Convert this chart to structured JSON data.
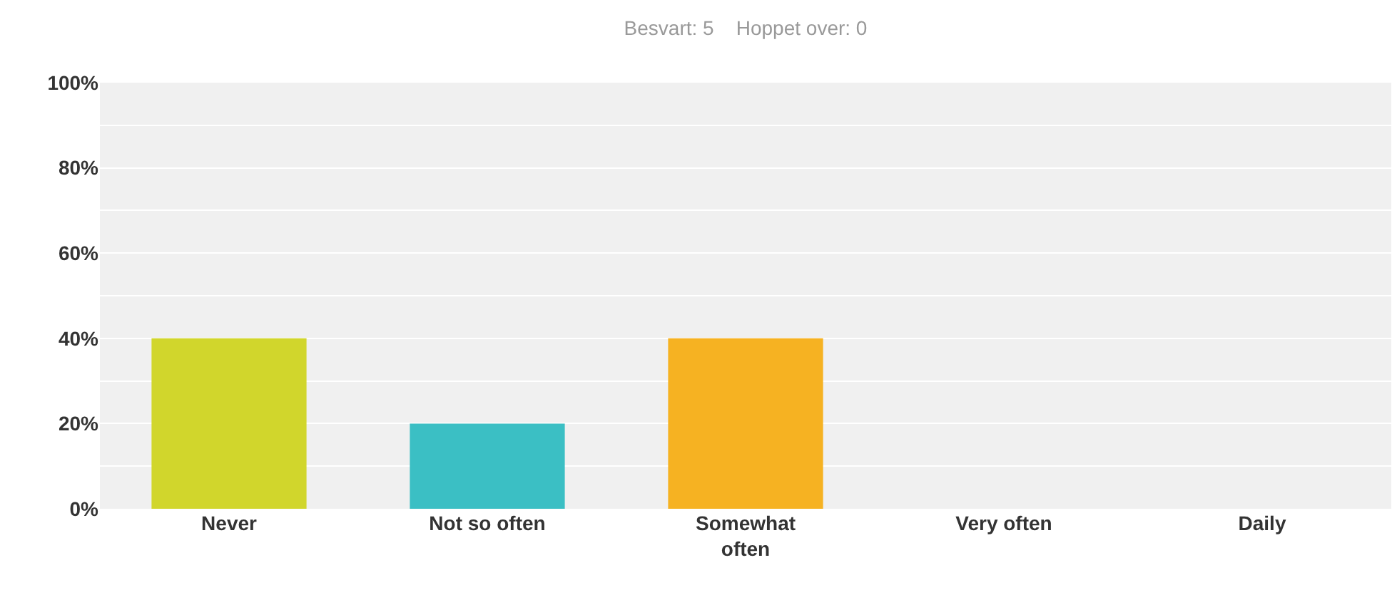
{
  "chart_data": {
    "type": "bar",
    "title": "Besvart: 5    Hoppet over: 0",
    "categories": [
      "Never",
      "Not so often",
      "Somewhat often",
      "Very often",
      "Daily"
    ],
    "values": [
      40,
      20,
      40,
      0,
      0
    ],
    "colors": [
      "#d1d62c",
      "#3bbfc4",
      "#f6b222",
      "#7d68a8",
      "#e0533c"
    ],
    "ylim": [
      0,
      100
    ],
    "yticks": [
      {
        "value": 0,
        "label": "0%"
      },
      {
        "value": 10,
        "label": null
      },
      {
        "value": 20,
        "label": "20%"
      },
      {
        "value": 30,
        "label": null
      },
      {
        "value": 40,
        "label": "40%"
      },
      {
        "value": 50,
        "label": null
      },
      {
        "value": 60,
        "label": "60%"
      },
      {
        "value": 70,
        "label": null
      },
      {
        "value": 80,
        "label": "80%"
      },
      {
        "value": 90,
        "label": null
      },
      {
        "value": 100,
        "label": "100%"
      }
    ],
    "grid": true
  }
}
